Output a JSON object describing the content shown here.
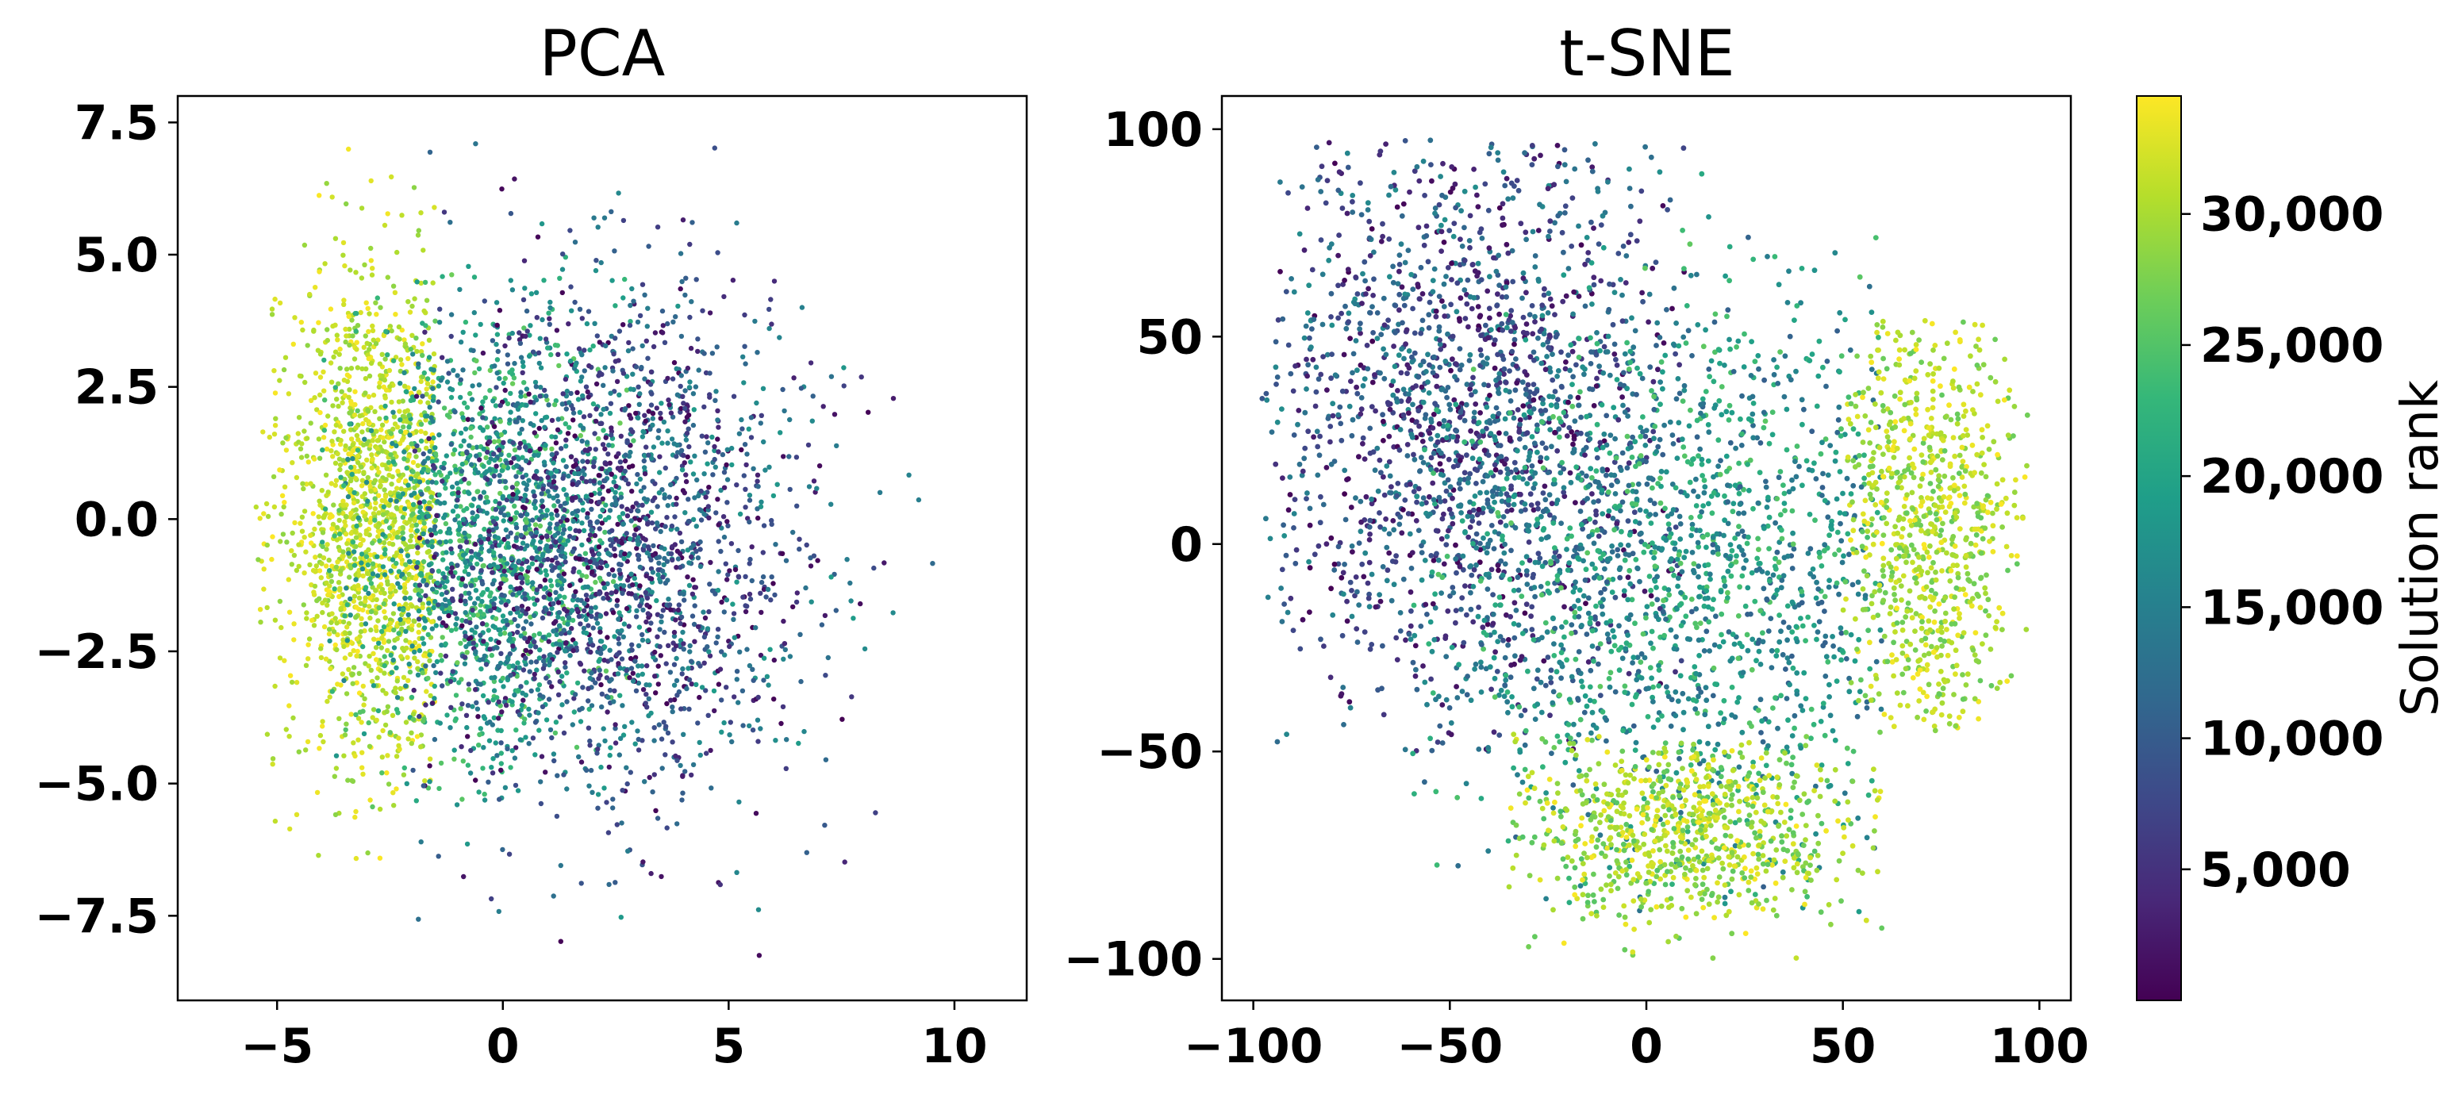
{
  "chart_data": [
    {
      "type": "scatter",
      "title": "PCA",
      "xlabel": "",
      "ylabel": "",
      "xlim": [
        -7.2,
        11.6
      ],
      "ylim": [
        -9.1,
        8.0
      ],
      "xticks": [
        -5,
        0,
        5,
        10
      ],
      "xtick_labels": [
        "−5",
        "0",
        "5",
        "10"
      ],
      "yticks": [
        -7.5,
        -5.0,
        -2.5,
        0.0,
        2.5,
        5.0,
        7.5
      ],
      "ytick_labels": [
        "−7.5",
        "−5.0",
        "−2.5",
        "0.0",
        "2.5",
        "5.0",
        "7.5"
      ],
      "grid": false,
      "color_by": "Solution rank",
      "clusters": [
        {
          "color_range": "high rank (yellow)",
          "center": [
            -2.8,
            0.0
          ],
          "spread": [
            1.1,
            2.4
          ],
          "x_range": [
            -5.5,
            -1.5
          ],
          "y_range": [
            -6.5,
            7.4
          ],
          "approx_points": 9000
        },
        {
          "color_range": "mid rank (green)",
          "center": [
            -0.5,
            -0.5
          ],
          "spread": [
            1.6,
            2.2
          ],
          "x_range": [
            -4.0,
            3.0
          ],
          "y_range": [
            -5.5,
            5.5
          ],
          "approx_points": 8000
        },
        {
          "color_range": "low rank (blue/purple)",
          "center": [
            2.2,
            -0.5
          ],
          "spread": [
            2.3,
            2.4
          ],
          "x_range": [
            -2.0,
            10.6
          ],
          "y_range": [
            -8.3,
            7.3
          ],
          "approx_points": 14000
        }
      ]
    },
    {
      "type": "scatter",
      "title": "t-SNE",
      "xlabel": "",
      "ylabel": "",
      "xlim": [
        -108,
        108
      ],
      "ylim": [
        -110,
        108
      ],
      "xticks": [
        -100,
        -50,
        0,
        50,
        100
      ],
      "xtick_labels": [
        "−100",
        "−50",
        "0",
        "50",
        "100"
      ],
      "yticks": [
        -100,
        -50,
        0,
        50,
        100
      ],
      "ytick_labels": [
        "−100",
        "−50",
        "0",
        "50",
        "100"
      ],
      "grid": false,
      "color_by": "Solution rank",
      "clusters": [
        {
          "color_range": "low rank (purple/blue)",
          "center": [
            -45,
            30
          ],
          "spread": [
            28,
            35
          ],
          "x_range": [
            -98,
            10
          ],
          "y_range": [
            -50,
            98
          ],
          "approx_points": 11000
        },
        {
          "color_range": "mid rank (teal/green)",
          "center": [
            10,
            -10
          ],
          "spread": [
            35,
            35
          ],
          "x_range": [
            -60,
            60
          ],
          "y_range": [
            -90,
            95
          ],
          "approx_points": 10000
        },
        {
          "color_range": "high rank (yellow) lobe right",
          "center": [
            72,
            5
          ],
          "spread": [
            12,
            30
          ],
          "x_range": [
            50,
            97
          ],
          "y_range": [
            -45,
            55
          ],
          "approx_points": 5000
        },
        {
          "color_range": "high rank (yellow) lobe bottom",
          "center": [
            10,
            -70
          ],
          "spread": [
            22,
            12
          ],
          "x_range": [
            -35,
            60
          ],
          "y_range": [
            -100,
            -45
          ],
          "approx_points": 5000
        }
      ]
    }
  ],
  "colorbar": {
    "label": "Solution rank",
    "colormap": "viridis",
    "range": [
      0,
      34500
    ],
    "ticks": [
      5000,
      10000,
      15000,
      20000,
      25000,
      30000
    ],
    "tick_labels": [
      "5,000",
      "10,000",
      "15,000",
      "20,000",
      "25,000",
      "30,000"
    ],
    "stops": [
      "#440154",
      "#482878",
      "#3e4989",
      "#31688e",
      "#26828e",
      "#1f9e89",
      "#35b779",
      "#6ece58",
      "#b5de2b",
      "#fde725"
    ]
  }
}
